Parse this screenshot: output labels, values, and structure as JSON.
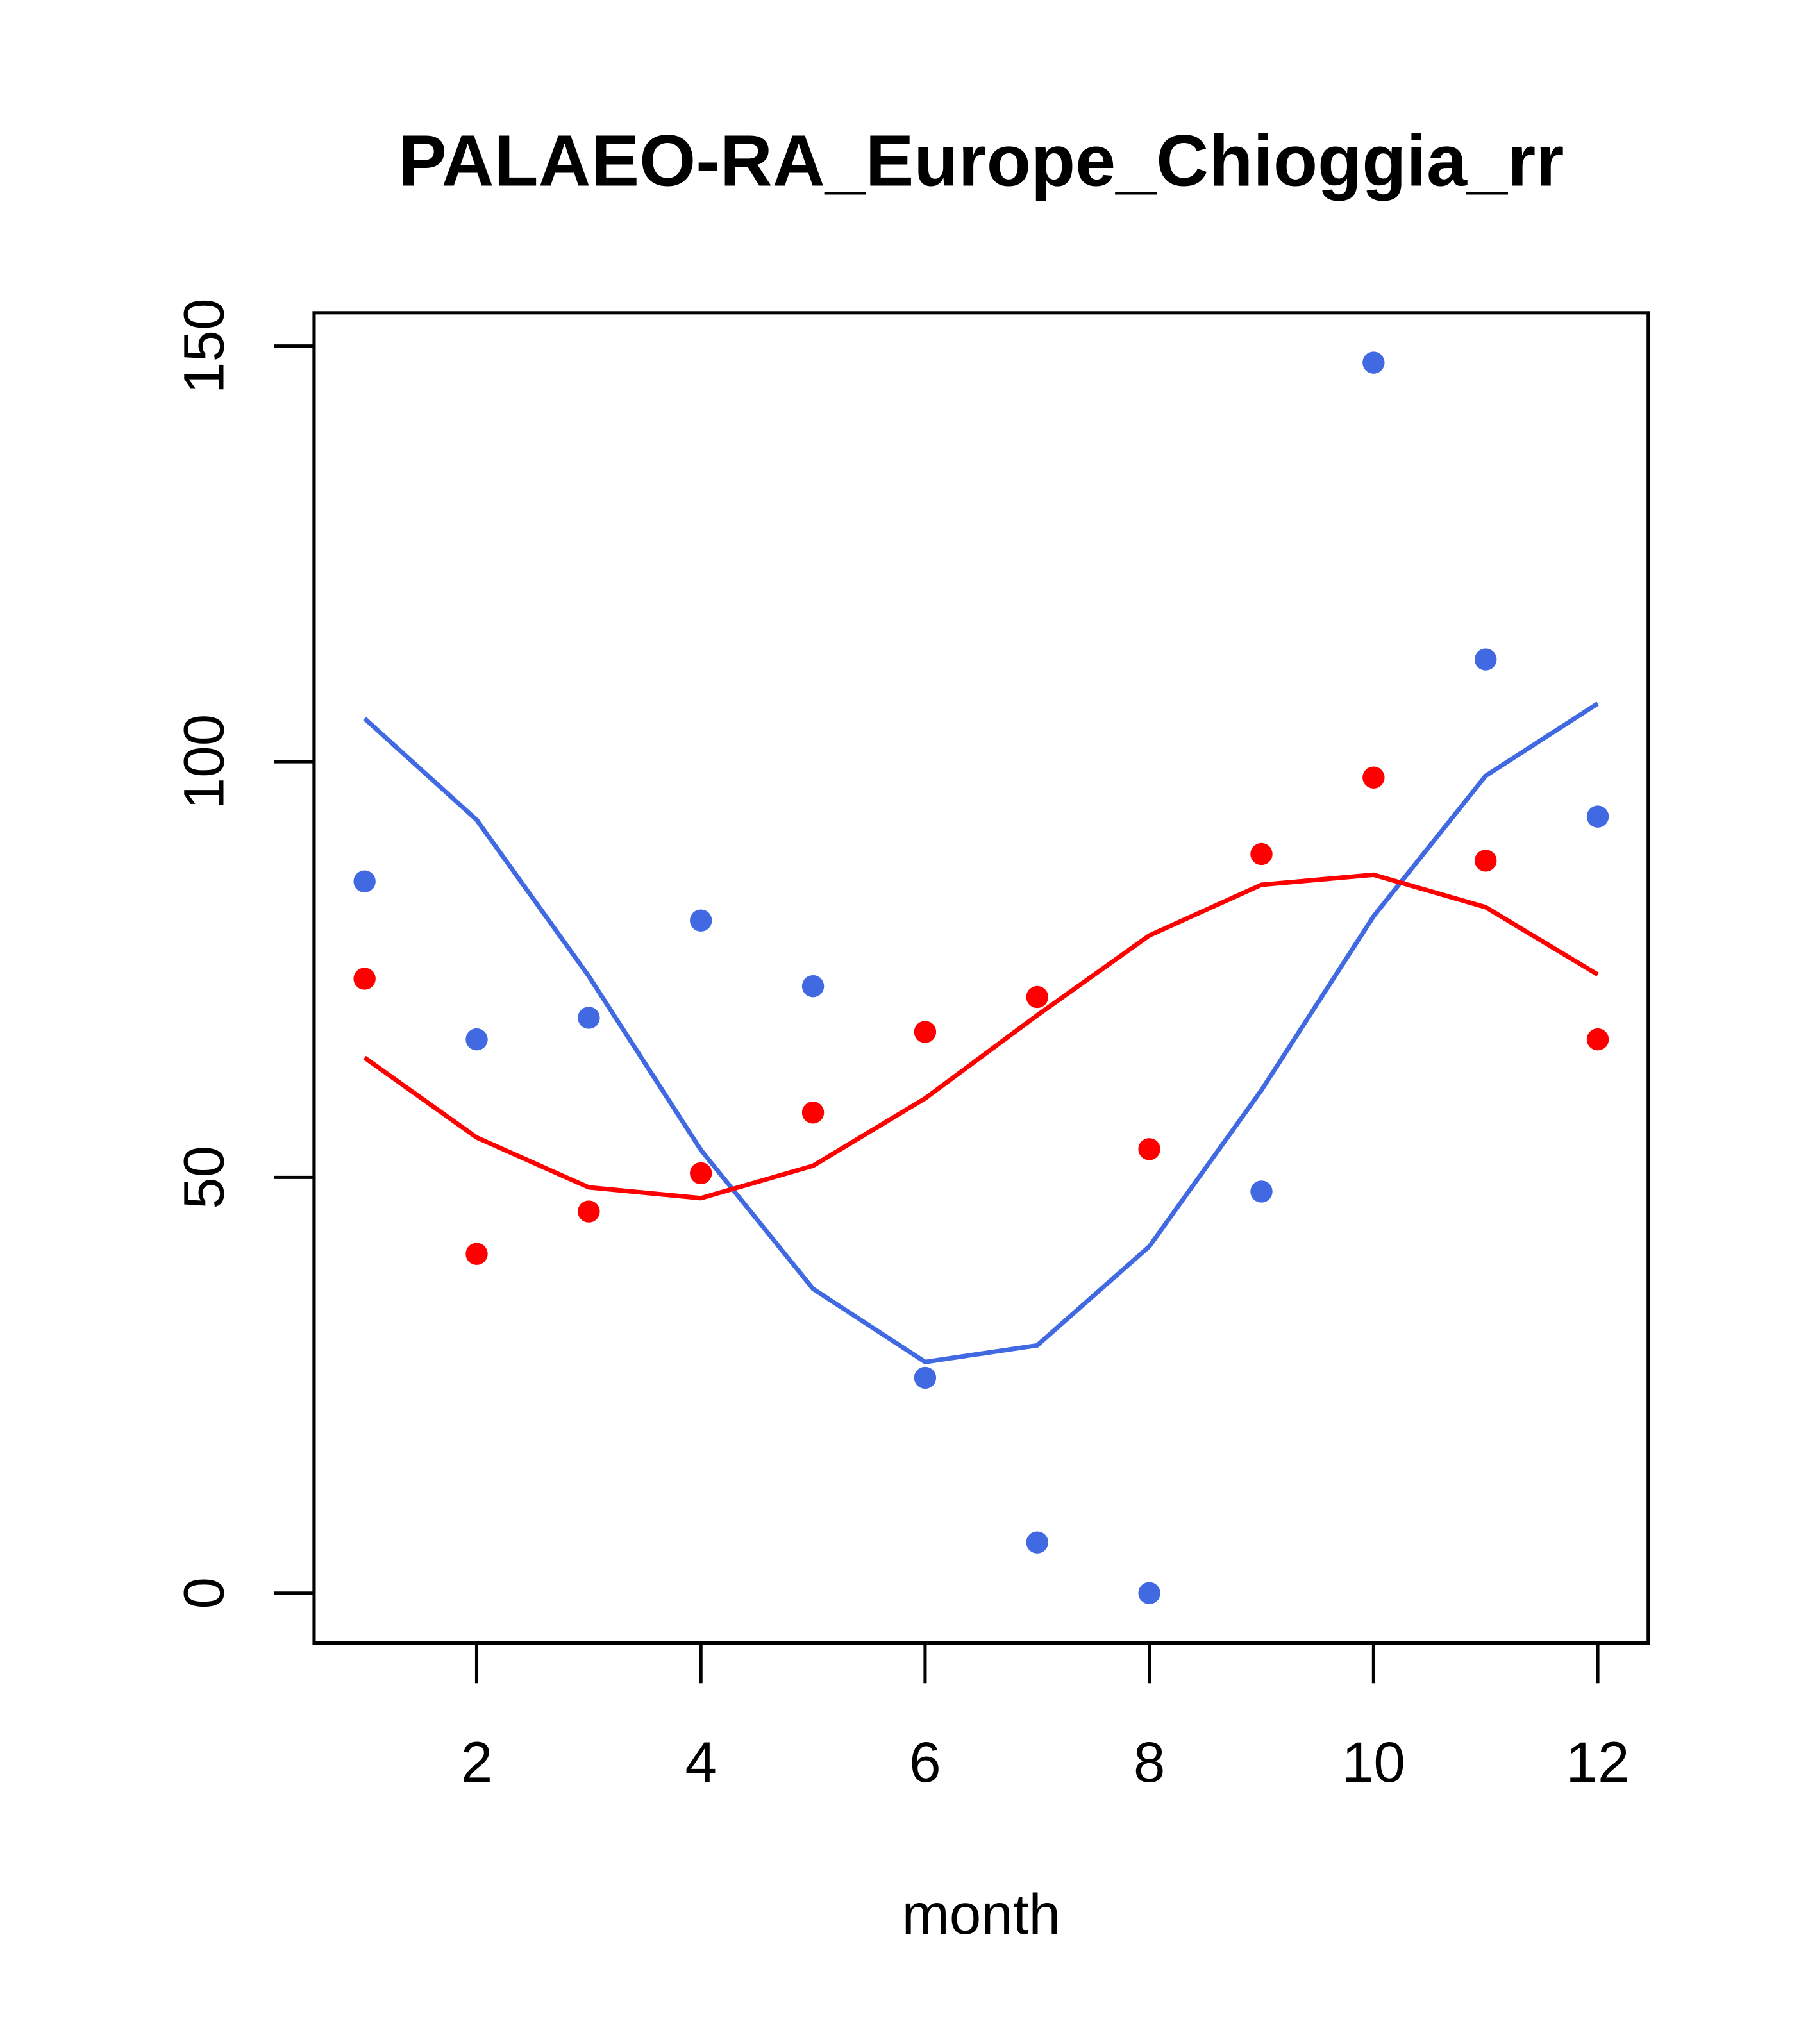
{
  "chart_data": {
    "type": "line",
    "title": "PALAEO-RA_Europe_Chioggia_rr",
    "xlabel": "month",
    "ylabel": "",
    "xlim": [
      0.55,
      12.45
    ],
    "ylim": [
      -6,
      154
    ],
    "x_ticks": [
      2,
      4,
      6,
      8,
      10,
      12
    ],
    "x_tick_labels": [
      "2",
      "4",
      "6",
      "8",
      "10",
      "12"
    ],
    "y_ticks": [
      0,
      50,
      100,
      150
    ],
    "y_tick_labels": [
      "0",
      "50",
      "100",
      "150"
    ],
    "grid": false,
    "x": [
      1,
      2,
      3,
      4,
      5,
      6,
      7,
      8,
      9,
      10,
      11,
      12
    ],
    "series": [
      {
        "name": "blue points",
        "kind": "points",
        "color": "#4169E1",
        "values": [
          85.6,
          66.6,
          69.2,
          80.9,
          73.0,
          25.9,
          6.1,
          0,
          48.3,
          148.0,
          112.3,
          93.4
        ]
      },
      {
        "name": "red points",
        "kind": "points",
        "color": "#FF0000",
        "values": [
          73.9,
          40.8,
          45.9,
          50.5,
          57.8,
          67.5,
          71.7,
          53.4,
          88.9,
          98.1,
          88.1,
          66.6
        ]
      },
      {
        "name": "blue line",
        "kind": "line",
        "color": "#4169E1",
        "values": [
          105.2,
          93.0,
          74.2,
          53.3,
          36.6,
          27.8,
          29.8,
          41.7,
          60.5,
          81.4,
          98.3,
          107.0
        ]
      },
      {
        "name": "red line",
        "kind": "line",
        "color": "#FF0000",
        "values": [
          64.4,
          54.8,
          48.8,
          47.5,
          51.4,
          59.5,
          69.5,
          79.1,
          85.2,
          86.4,
          82.5,
          74.4
        ]
      }
    ]
  }
}
